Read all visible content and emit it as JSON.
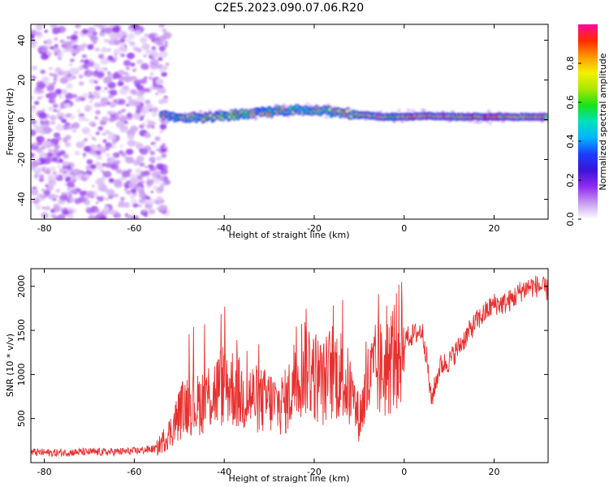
{
  "title": "C2E5.2023.090.07.06.R20",
  "chart_data": [
    {
      "type": "heatmap",
      "xlabel": "Height of straight line (km)",
      "ylabel": "Frequency (Hz)",
      "xlim": [
        -83,
        32
      ],
      "ylim": [
        -50,
        48
      ],
      "x_ticks": [
        -80,
        -60,
        -40,
        -20,
        0,
        20
      ],
      "y_ticks": [
        -40,
        -20,
        0,
        20,
        40
      ],
      "colorbar": {
        "label": "Normalized spectral amplitude",
        "range": [
          0,
          1
        ],
        "ticks": [
          "0.0",
          "0.2",
          "0.4",
          "0.6",
          "0.8"
        ],
        "colors": [
          "#ffffff",
          "#c89bf0",
          "#8f2cf0",
          "#3b14d6",
          "#1c3cff",
          "#00b4ff",
          "#00e0c0",
          "#18e21a",
          "#a8e800",
          "#f2f200",
          "#ff9800",
          "#ff2a00",
          "#ff0a9a"
        ]
      },
      "regions": [
        {
          "name": "noise",
          "x_range": [
            -83,
            -54
          ],
          "freq_range": [
            -50,
            48
          ],
          "amplitude": "low"
        },
        {
          "name": "signal",
          "x_range": [
            -54,
            32
          ],
          "center_freq": [
            [
              -54,
              2
            ],
            [
              -45,
              1
            ],
            [
              -35,
              3
            ],
            [
              -25,
              5
            ],
            [
              -20,
              5
            ],
            [
              -12,
              3
            ],
            [
              -5,
              1.5
            ],
            [
              0,
              1.5
            ],
            [
              5,
              2
            ],
            [
              10,
              1.5
            ],
            [
              20,
              1.5
            ],
            [
              32,
              1.5
            ]
          ],
          "amplitude": "high"
        }
      ]
    },
    {
      "type": "line",
      "xlabel": "Height of straight line (km)",
      "ylabel": "SNR (10 * v/v)",
      "xlim": [
        -83,
        32
      ],
      "ylim": [
        0,
        2200
      ],
      "x_ticks": [
        -80,
        -60,
        -40,
        -20,
        0,
        20
      ],
      "y_ticks": [
        500,
        1000,
        1500,
        2000
      ],
      "color": "#e8302e",
      "series": [
        {
          "x": [
            -83,
            -78,
            -72,
            -66,
            -60,
            -55,
            -52,
            -50,
            -48,
            -46,
            -44,
            -42,
            -40,
            -38,
            -36,
            -34,
            -32,
            -30,
            -28,
            -26,
            -24,
            -22,
            -20,
            -18,
            -16,
            -14,
            -12,
            -10,
            -8,
            -6,
            -4,
            -2,
            0,
            2,
            4,
            5,
            6,
            8,
            10,
            12,
            14,
            16,
            18,
            20,
            22,
            24,
            26,
            28,
            30,
            32
          ],
          "values": [
            120,
            110,
            120,
            120,
            130,
            160,
            350,
            550,
            700,
            650,
            750,
            800,
            900,
            850,
            750,
            750,
            700,
            700,
            650,
            700,
            1000,
            1150,
            1000,
            900,
            1050,
            1000,
            800,
            500,
            900,
            1050,
            1050,
            1250,
            1400,
            1450,
            1500,
            1200,
            700,
            1100,
            1150,
            1300,
            1450,
            1600,
            1700,
            1800,
            1800,
            1850,
            1950,
            2000,
            2000,
            1950
          ]
        }
      ]
    }
  ]
}
